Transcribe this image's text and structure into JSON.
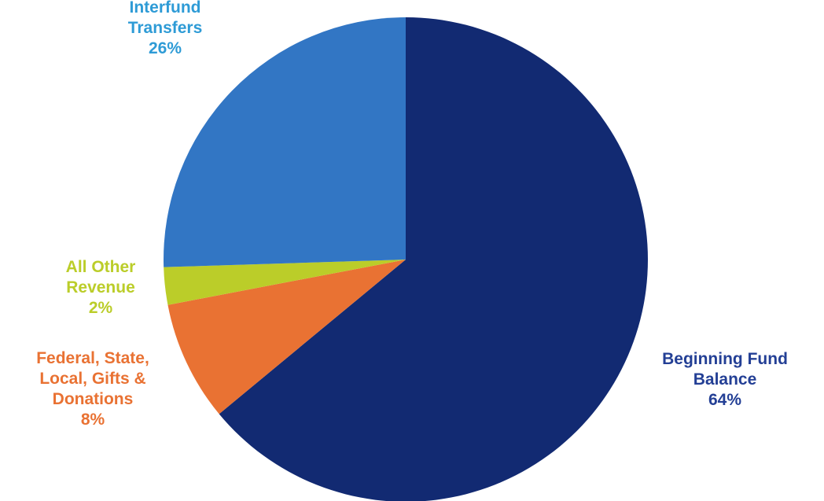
{
  "chart_data": {
    "type": "pie",
    "title": "",
    "start_angle_deg": 0,
    "direction": "clockwise",
    "slices": [
      {
        "label": "Beginning Fund Balance",
        "label_lines": [
          "Beginning Fund",
          "Balance"
        ],
        "percent_text": "64%",
        "value": 64,
        "color": "#122a72",
        "label_color": "#233f95"
      },
      {
        "label": "Federal, State, Local, Gifts & Donations",
        "label_lines": [
          "Federal, State,",
          "Local, Gifts &",
          "Donations"
        ],
        "percent_text": "8%",
        "value": 8,
        "color": "#e97233",
        "label_color": "#e97233"
      },
      {
        "label": "All Other Revenue",
        "label_lines": [
          "All Other",
          "Revenue"
        ],
        "percent_text": "2%",
        "value": 2.5,
        "color": "#bbcd29",
        "label_color": "#bbcd29"
      },
      {
        "label": "Interfund Transfers",
        "label_lines": [
          "Interfund",
          "Transfers"
        ],
        "percent_text": "26%",
        "value": 25.5,
        "color": "#3276c4",
        "label_color": "#2e9bd6"
      }
    ]
  }
}
